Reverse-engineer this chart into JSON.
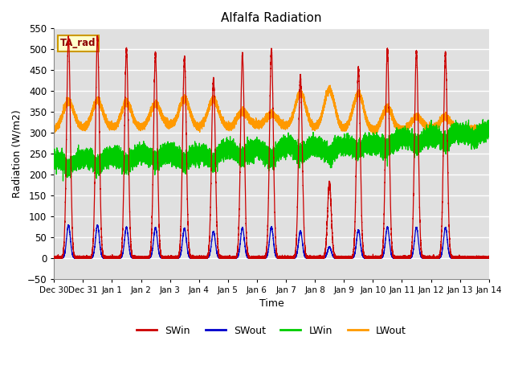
{
  "title": "Alfalfa Radiation",
  "xlabel": "Time",
  "ylabel": "Radiation (W/m2)",
  "ylim": [
    -50,
    550
  ],
  "yticks": [
    -50,
    0,
    50,
    100,
    150,
    200,
    250,
    300,
    350,
    400,
    450,
    500,
    550
  ],
  "bg_color": "#e0e0e0",
  "grid_color": "white",
  "annotation_text": "TA_rad",
  "annotation_bg": "#ffffcc",
  "annotation_border": "#cc9900",
  "colors": {
    "SWin": "#cc0000",
    "SWout": "#0000cc",
    "LWin": "#00cc00",
    "LWout": "#ff9900"
  },
  "SWin_peaks": [
    530,
    530,
    500,
    490,
    480,
    430,
    490,
    500,
    435,
    180,
    455,
    500,
    495,
    490,
    0
  ],
  "tick_labels": [
    "Dec 30",
    "Dec 31",
    "Jan 1",
    "Jan 2",
    "Jan 3",
    "Jan 4",
    "Jan 5",
    "Jan 6",
    "Jan 7",
    "Jan 8",
    "Jan 9",
    "Jan 10",
    "Jan 11",
    "Jan 12",
    "Jan 13",
    "Jan 14"
  ]
}
